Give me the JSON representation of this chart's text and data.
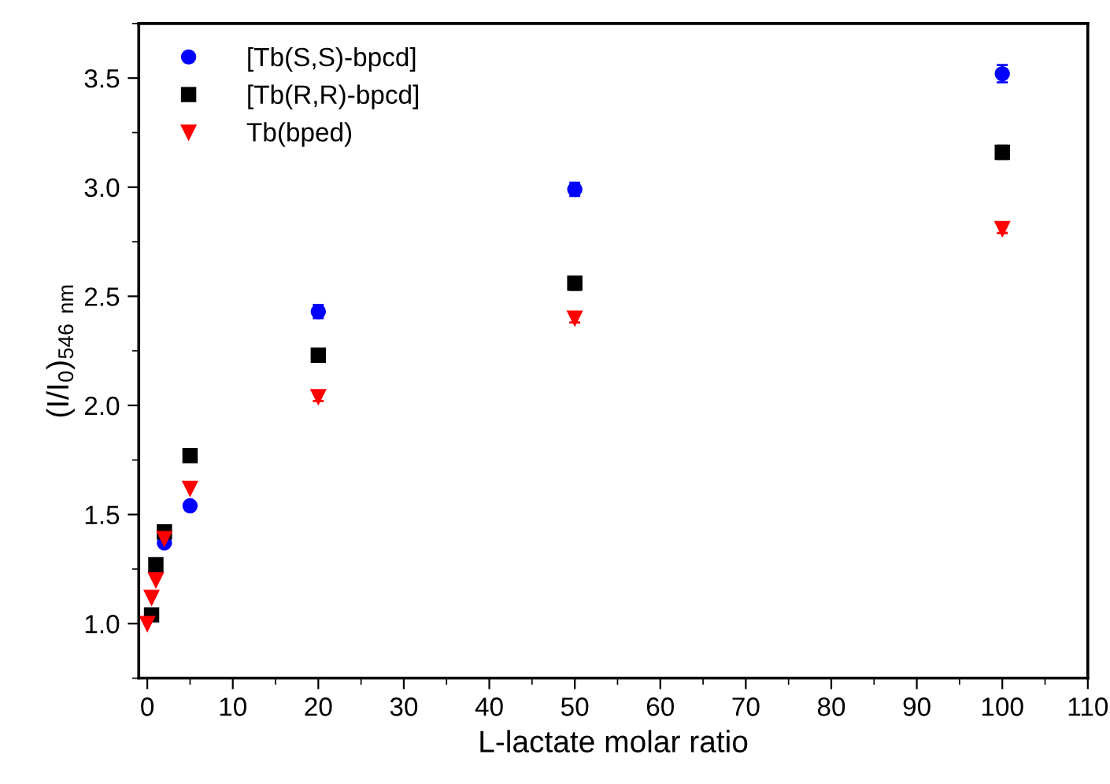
{
  "chart_data": {
    "type": "scatter",
    "xlabel": "L-lactate molar ratio",
    "ylabel": "(I/I$_{0}$)$_{546 nm}$",
    "x": [
      0,
      0.5,
      1,
      2,
      5,
      20,
      50,
      100
    ],
    "series": [
      {
        "name": "[Tb(S,S)-bpcd]",
        "color": "#0000ff",
        "marker": "circle",
        "values": [
          null,
          null,
          null,
          1.37,
          1.54,
          2.43,
          2.99,
          3.52
        ],
        "errors": [
          null,
          null,
          null,
          null,
          null,
          0.03,
          0.03,
          0.04
        ]
      },
      {
        "name": "[Tb(R,R)-bpcd]",
        "color": "#000000",
        "marker": "square",
        "values": [
          null,
          1.04,
          1.27,
          1.42,
          1.77,
          2.23,
          2.56,
          3.16
        ],
        "errors": [
          null,
          null,
          null,
          null,
          null,
          null,
          0.03,
          0.03
        ]
      },
      {
        "name": "Tb(bped)",
        "color": "#ff0000",
        "marker": "triangle",
        "values": [
          1.0,
          1.12,
          1.2,
          1.39,
          1.62,
          2.04,
          2.4,
          2.81
        ],
        "errors": [
          null,
          null,
          null,
          null,
          null,
          0.02,
          0.02,
          0.02
        ]
      }
    ],
    "xlim": [
      -1,
      110
    ],
    "ylim": [
      0.75,
      3.75
    ],
    "xticks": [
      0,
      10,
      20,
      30,
      40,
      50,
      60,
      70,
      80,
      90,
      100,
      110
    ],
    "yticks": [
      {
        "value": 1,
        "label": "1.0"
      },
      1.5,
      {
        "value": 2,
        "label": "2.0"
      },
      2.5,
      {
        "value": 3,
        "label": "3.0"
      },
      3.5
    ],
    "grid": false,
    "legend": "top left"
  }
}
